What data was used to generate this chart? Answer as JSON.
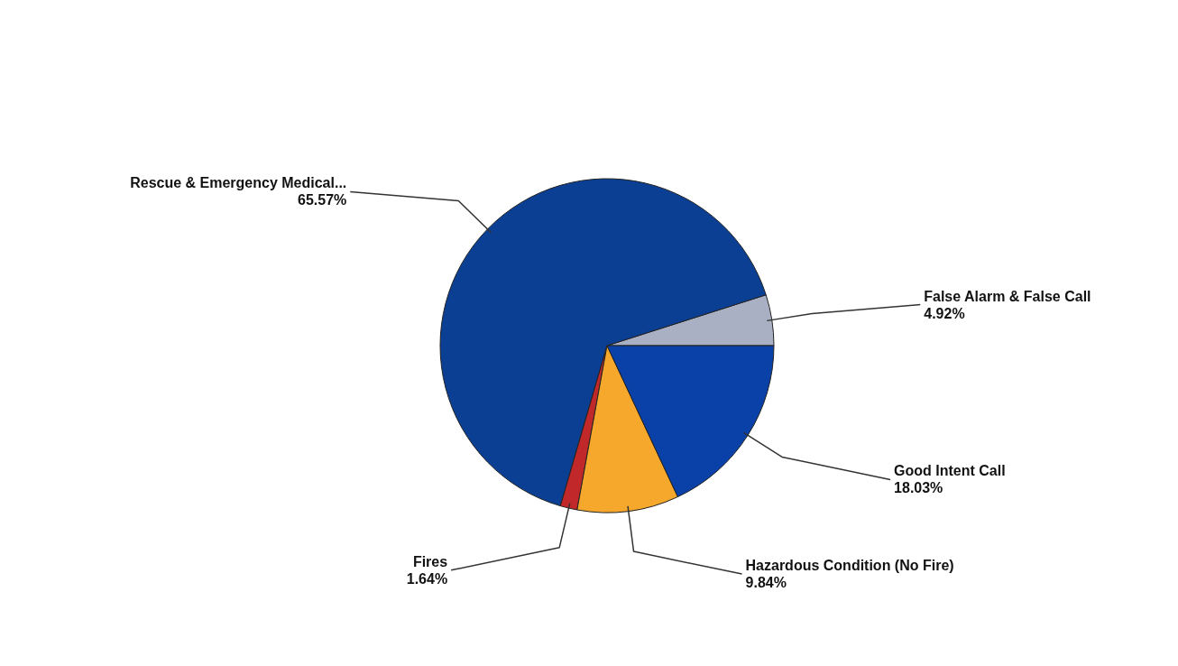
{
  "chart_data": {
    "type": "pie",
    "categories": [
      "False Alarm & False Call",
      "Rescue & Emergency Medical...",
      "Fires",
      "Hazardous Condition (No Fire)",
      "Good Intent Call"
    ],
    "values": [
      4.92,
      65.57,
      1.64,
      9.84,
      18.03
    ],
    "value_labels": [
      "4.92%",
      "65.57%",
      "1.64%",
      "9.84%",
      "18.03%"
    ],
    "colors": [
      "#a9b0c4",
      "#0b3f93",
      "#c0282a",
      "#f5a82c",
      "#0a41a8"
    ]
  }
}
